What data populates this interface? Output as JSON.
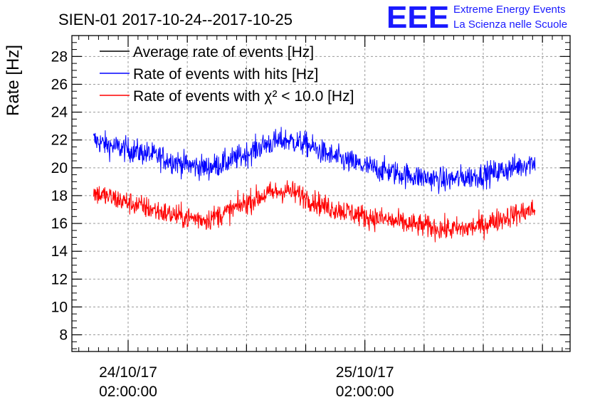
{
  "chart_data": {
    "type": "line",
    "title": "SIEN-01 2017-10-24--2017-10-25",
    "xlabel": "",
    "ylabel": "Rate [Hz]",
    "ylim": [
      6.8,
      29.5
    ],
    "yticks": [
      8,
      10,
      12,
      14,
      16,
      18,
      20,
      22,
      24,
      26,
      28
    ],
    "xlim_hours": [
      -5.7,
      44.8
    ],
    "xticks": [
      {
        "hour": 0,
        "line1": "24/10/17",
        "line2": "02:00:00"
      },
      {
        "hour": 24,
        "line1": "25/10/17",
        "line2": "02:00:00"
      }
    ],
    "grid": true,
    "legend_position": "top-left",
    "series": [
      {
        "name": "Average rate of events [Hz]",
        "color": "#000000",
        "x_hours": [],
        "values": []
      },
      {
        "name": "Rate of events with hits [Hz]",
        "color": "#0000ff",
        "x_hours": [
          -3.5,
          -2,
          0,
          2,
          4,
          6,
          8,
          10,
          12,
          14,
          16,
          18,
          20,
          22,
          24,
          26,
          28,
          30,
          32,
          34,
          36,
          38,
          40,
          41.3
        ],
        "values": [
          22.0,
          21.6,
          21.3,
          21.0,
          20.6,
          20.2,
          20.0,
          20.4,
          21.0,
          21.7,
          22.0,
          21.7,
          21.0,
          20.5,
          20.1,
          19.8,
          19.5,
          19.3,
          19.1,
          19.3,
          19.5,
          19.8,
          20.2,
          20.5
        ],
        "noise": 0.8
      },
      {
        "name": "Rate of events with χ² < 10.0 [Hz]",
        "color": "#ff0000",
        "x_hours": [
          -3.5,
          -2,
          0,
          2,
          4,
          6,
          8,
          10,
          12,
          14,
          16,
          18,
          20,
          22,
          24,
          26,
          28,
          30,
          32,
          34,
          36,
          38,
          40,
          41.3
        ],
        "values": [
          18.2,
          17.9,
          17.5,
          17.1,
          16.7,
          16.4,
          16.3,
          16.8,
          17.5,
          18.1,
          18.4,
          17.9,
          17.2,
          16.9,
          16.5,
          16.3,
          16.0,
          15.8,
          15.6,
          15.6,
          15.9,
          16.4,
          16.8,
          17.0
        ],
        "noise": 0.75
      }
    ]
  },
  "logo": {
    "mark": "EEE",
    "line1": "Extreme Energy Events",
    "line2": "La Scienza nelle Scuole",
    "color": "#1a1aff"
  }
}
